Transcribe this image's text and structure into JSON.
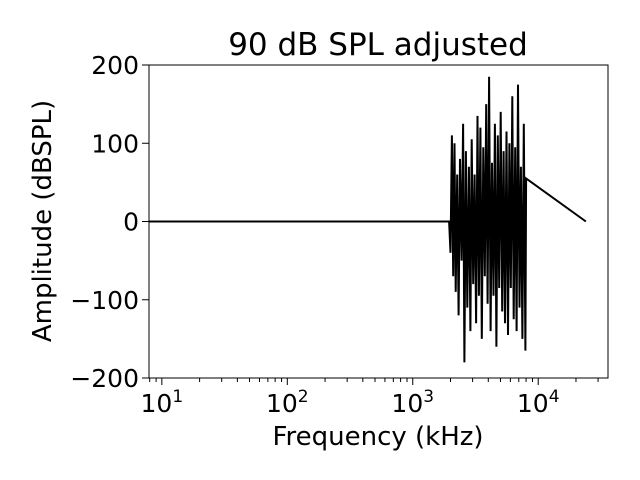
{
  "chart_data": {
    "type": "line",
    "title": "90 dB SPL adjusted",
    "xlabel": "Frequency (kHz)",
    "ylabel": "Amplitude (dBSPL)",
    "xscale": "log",
    "xlim": [
      7.9,
      36000
    ],
    "ylim": [
      -200,
      200
    ],
    "grid": false,
    "legend": "none",
    "series_color": "#000000",
    "y_ticks": [
      {
        "value": 200,
        "label": "200"
      },
      {
        "value": 100,
        "label": "100"
      },
      {
        "value": 0,
        "label": "0"
      },
      {
        "value": -100,
        "label": "−100"
      },
      {
        "value": -200,
        "label": "−200"
      }
    ],
    "x_ticks": [
      {
        "value": 10,
        "base": "10",
        "exp": "1"
      },
      {
        "value": 100,
        "base": "10",
        "exp": "2"
      },
      {
        "value": 1000,
        "base": "10",
        "exp": "3"
      },
      {
        "value": 10000,
        "base": "10",
        "exp": "4"
      }
    ],
    "series": [
      {
        "x": [
          7.9,
          1950,
          2000,
          2050,
          2100,
          2150,
          2200,
          2260,
          2320,
          2380,
          2450,
          2520,
          2580,
          2650,
          2720,
          2800,
          2880,
          2950,
          3030,
          3110,
          3200,
          3280,
          3370,
          3460,
          3550,
          3650,
          3750,
          3850,
          3950,
          4060,
          4170,
          4280,
          4400,
          4520,
          4640,
          4760,
          4890,
          5020,
          5160,
          5300,
          5440,
          5590,
          5740,
          5890,
          6050,
          6210,
          6380,
          6550,
          6720,
          6900,
          7090,
          7280,
          7480,
          7680,
          7900,
          8000,
          24000
        ],
        "y": [
          0,
          0,
          -40,
          110,
          -70,
          100,
          -90,
          60,
          -120,
          80,
          -50,
          125,
          -180,
          90,
          -110,
          70,
          -140,
          105,
          -80,
          60,
          -130,
          135,
          -95,
          120,
          -150,
          95,
          -70,
          150,
          -105,
          185,
          -140,
          75,
          -95,
          125,
          -160,
          110,
          -85,
          140,
          -115,
          90,
          -130,
          115,
          -145,
          100,
          -85,
          160,
          -125,
          95,
          -140,
          175,
          -110,
          70,
          -150,
          125,
          -165,
          55,
          0
        ]
      }
    ]
  }
}
